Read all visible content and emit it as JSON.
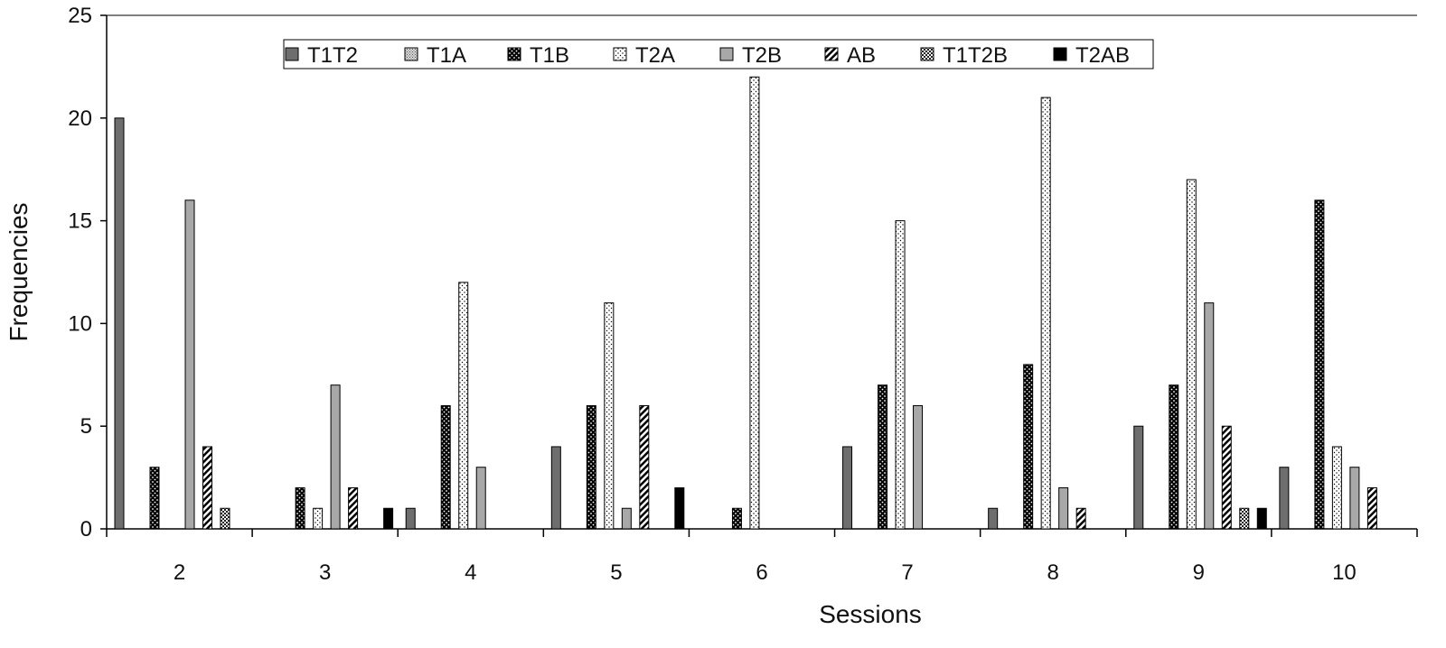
{
  "chart_data": {
    "type": "bar",
    "title": "",
    "xlabel": "Sessions",
    "ylabel": "Frequencies",
    "ylim": [
      0,
      25
    ],
    "yticks": [
      "0",
      "5",
      "10",
      "15",
      "20",
      "25"
    ],
    "grid": false,
    "legend_position": "top-center",
    "categories": [
      "2",
      "3",
      "4",
      "5",
      "6",
      "7",
      "8",
      "9",
      "10"
    ],
    "series": [
      {
        "name": "T1T2",
        "pattern": "solid-gray",
        "values": [
          20,
          0,
          1,
          4,
          0,
          4,
          1,
          5,
          3
        ]
      },
      {
        "name": "T1A",
        "pattern": "fine-check",
        "values": [
          0,
          0,
          0,
          0,
          0,
          0,
          0,
          0,
          0
        ]
      },
      {
        "name": "T1B",
        "pattern": "dots-on-black",
        "values": [
          3,
          2,
          6,
          6,
          1,
          7,
          8,
          7,
          16
        ]
      },
      {
        "name": "T2A",
        "pattern": "sparse-dots",
        "values": [
          0,
          1,
          12,
          11,
          22,
          15,
          21,
          17,
          4
        ]
      },
      {
        "name": "T2B",
        "pattern": "light-gray",
        "values": [
          16,
          7,
          3,
          1,
          0,
          6,
          2,
          11,
          3
        ]
      },
      {
        "name": "AB",
        "pattern": "diagonal",
        "values": [
          4,
          2,
          0,
          6,
          0,
          0,
          1,
          5,
          2
        ]
      },
      {
        "name": "T1T2B",
        "pattern": "checker",
        "values": [
          1,
          0,
          0,
          0,
          0,
          0,
          0,
          1,
          0
        ]
      },
      {
        "name": "T2AB",
        "pattern": "solid-black",
        "values": [
          0,
          1,
          0,
          2,
          0,
          0,
          0,
          1,
          0
        ]
      }
    ]
  }
}
